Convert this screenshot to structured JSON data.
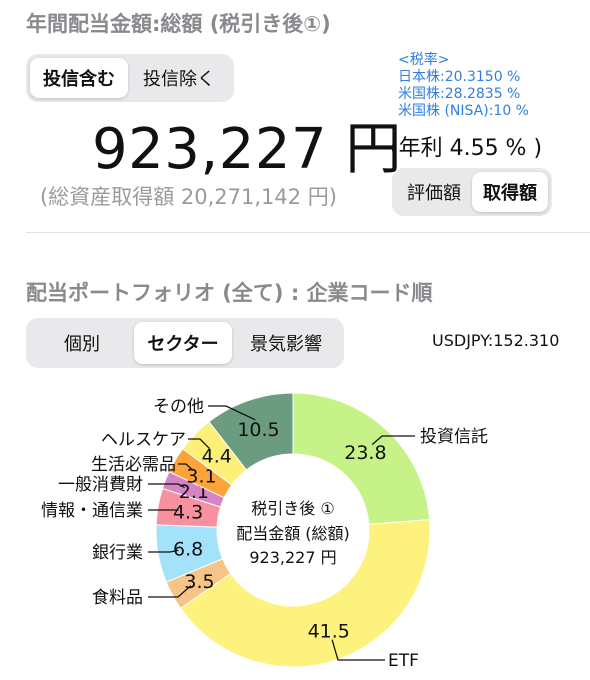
{
  "header": {
    "title": "年間配当金額:総額 (税引き後①)",
    "toggle": {
      "options": [
        "投信含む",
        "投信除く"
      ],
      "selected": 0
    },
    "tax_rates": [
      "<税率>",
      "日本株:20.3150 %",
      "米国株:28.2835 %",
      "米国株 (NISA):10 %"
    ],
    "amount": "923,227 円",
    "annual_rate": "(年利 4.55 % )",
    "acquisition": "(総資産取得額 20,271,142 円)",
    "basis_toggle": {
      "options": [
        "評価額",
        "取得額"
      ],
      "selected": 1
    }
  },
  "portfolio": {
    "title": "配当ポートフォリオ (全て) : 企業コード順",
    "view_toggle": {
      "options": [
        "個別",
        "セクター",
        "景気影響"
      ],
      "selected": 1
    },
    "fx_rate": "USDJPY:152.310",
    "center_label": [
      "税引き後 ①",
      "配当金額 (総額)",
      "923,227 円"
    ]
  },
  "chart_data": {
    "type": "pie",
    "title": "",
    "categories": [
      "投資信託",
      "ETF",
      "食料品",
      "銀行業",
      "情報・通信業",
      "一般消費財",
      "生活必需品",
      "ヘルスケア",
      "その他"
    ],
    "values": [
      23.8,
      41.5,
      3.5,
      6.8,
      4.3,
      2.1,
      3.1,
      4.4,
      10.5
    ],
    "value_labels": [
      "23.8",
      "41.5",
      "3.5",
      "6.8",
      "4.3",
      "2.1",
      "3.1",
      "4.4",
      "10.5"
    ],
    "colors": [
      "#c7f288",
      "#fdf27e",
      "#f7c487",
      "#a3e2f8",
      "#f7919e",
      "#d684c4",
      "#fba43a",
      "#fcf079",
      "#6b9c80"
    ],
    "donut": true,
    "legend": "callouts"
  }
}
